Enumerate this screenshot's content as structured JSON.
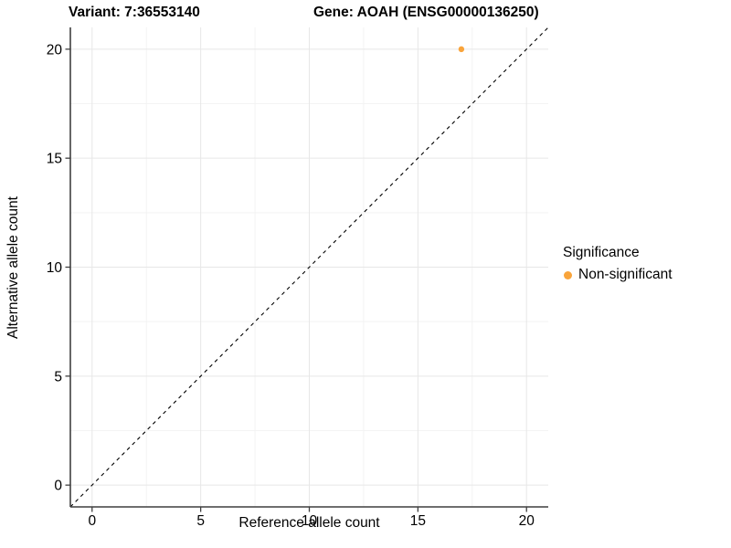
{
  "chart_data": {
    "type": "scatter",
    "title_left": "Variant: 7:36553140",
    "title_right": "Gene: AOAH (ENSG00000136250)",
    "xlabel": "Reference allele count",
    "ylabel": "Alternative allele count",
    "xlim": [
      -1,
      21
    ],
    "ylim": [
      -1,
      21
    ],
    "x_ticks": [
      0,
      5,
      10,
      15,
      20
    ],
    "y_ticks": [
      0,
      5,
      10,
      15,
      20
    ],
    "x_minor_ticks": [
      2.5,
      7.5,
      12.5,
      17.5
    ],
    "y_minor_ticks": [
      2.5,
      7.5,
      12.5,
      17.5
    ],
    "grid": true,
    "points": [
      {
        "x": 17,
        "y": 20,
        "series": "Non-significant"
      }
    ],
    "identity_line": {
      "slope": 1,
      "intercept": 0,
      "style": "dashed",
      "color": "#000000"
    },
    "legend": {
      "title": "Significance",
      "position": "right",
      "entries": [
        {
          "label": "Non-significant",
          "color": "#F9A43B"
        }
      ]
    },
    "colors": {
      "grid_major": "#E7E7E7",
      "grid_minor": "#F3F3F3",
      "axis_line": "#3F3F3F",
      "tick_text": "#000000",
      "background": "#FFFFFF"
    }
  }
}
